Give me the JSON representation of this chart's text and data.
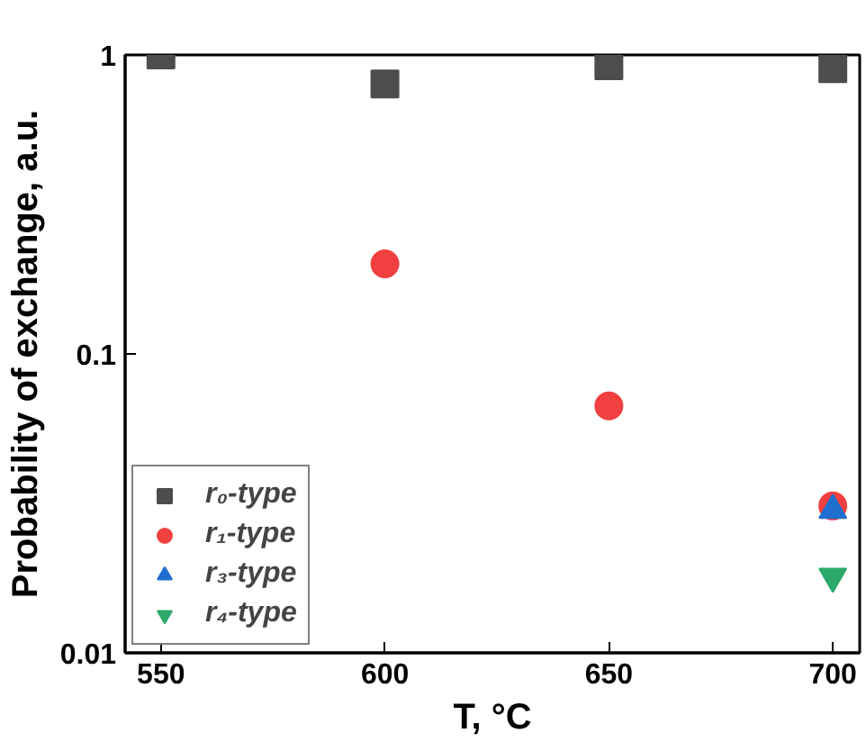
{
  "chart_data": {
    "type": "scatter",
    "xlabel": "T, °C",
    "ylabel": "Probability of exchange, a.u.",
    "log": "y",
    "xlim": [
      542,
      706
    ],
    "xticks": [
      550,
      600,
      650,
      700
    ],
    "ylim": [
      0.01,
      1
    ],
    "yticks": [
      0.01,
      0.1,
      1
    ],
    "grid": false,
    "legend": "bottom left",
    "series": [
      {
        "name": "r₀-type",
        "color": "#4d4d4d",
        "marker": "square",
        "x": [
          550,
          600,
          650,
          700
        ],
        "values": [
          1.0,
          0.8,
          0.92,
          0.9
        ]
      },
      {
        "name": "r₁-type",
        "color": "#f04040",
        "marker": "circle",
        "x": [
          600,
          650,
          700
        ],
        "values": [
          0.2,
          0.067,
          0.031
        ]
      },
      {
        "name": "r₃-type",
        "color": "#1f6fd0",
        "marker": "triangle",
        "x": [
          700
        ],
        "values": [
          0.03
        ]
      },
      {
        "name": "r₄-type",
        "color": "#2ca86a",
        "x": [
          700
        ],
        "values": [
          0.018
        ]
      }
    ]
  }
}
